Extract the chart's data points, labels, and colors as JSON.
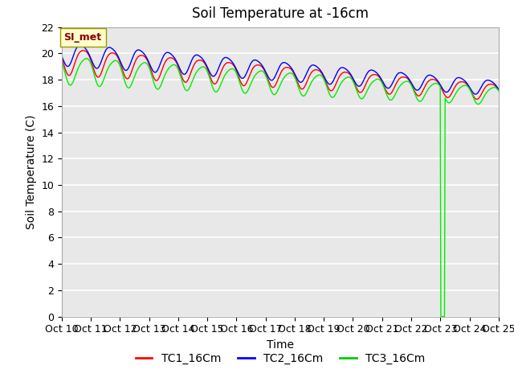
{
  "title": "Soil Temperature at -16cm",
  "xlabel": "Time",
  "ylabel": "Soil Temperature (C)",
  "ylim": [
    0,
    22
  ],
  "yticks": [
    0,
    2,
    4,
    6,
    8,
    10,
    12,
    14,
    16,
    18,
    20,
    22
  ],
  "x_tick_labels": [
    "Oct 10",
    "Oct 11",
    "Oct 12",
    "Oct 13",
    "Oct 14",
    "Oct 15",
    "Oct 16",
    "Oct 17",
    "Oct 18",
    "Oct 19",
    "Oct 20",
    "Oct 21",
    "Oct 22",
    "Oct 23",
    "Oct 24",
    "Oct 25"
  ],
  "legend_labels": [
    "TC1_16Cm",
    "TC2_16Cm",
    "TC3_16Cm"
  ],
  "legend_colors": [
    "#ff0000",
    "#0000ff",
    "#00cc00"
  ],
  "line_colors": [
    "#ff0000",
    "#0000ff",
    "#00ee00"
  ],
  "annotation_text": "SI_met",
  "annotation_bg": "#ffffcc",
  "annotation_border": "#999900",
  "fig_bg": "#ffffff",
  "plot_bg": "#e8e8e8",
  "grid_color": "#ffffff",
  "title_fontsize": 12,
  "axis_label_fontsize": 10,
  "tick_fontsize": 9,
  "legend_fontsize": 10
}
